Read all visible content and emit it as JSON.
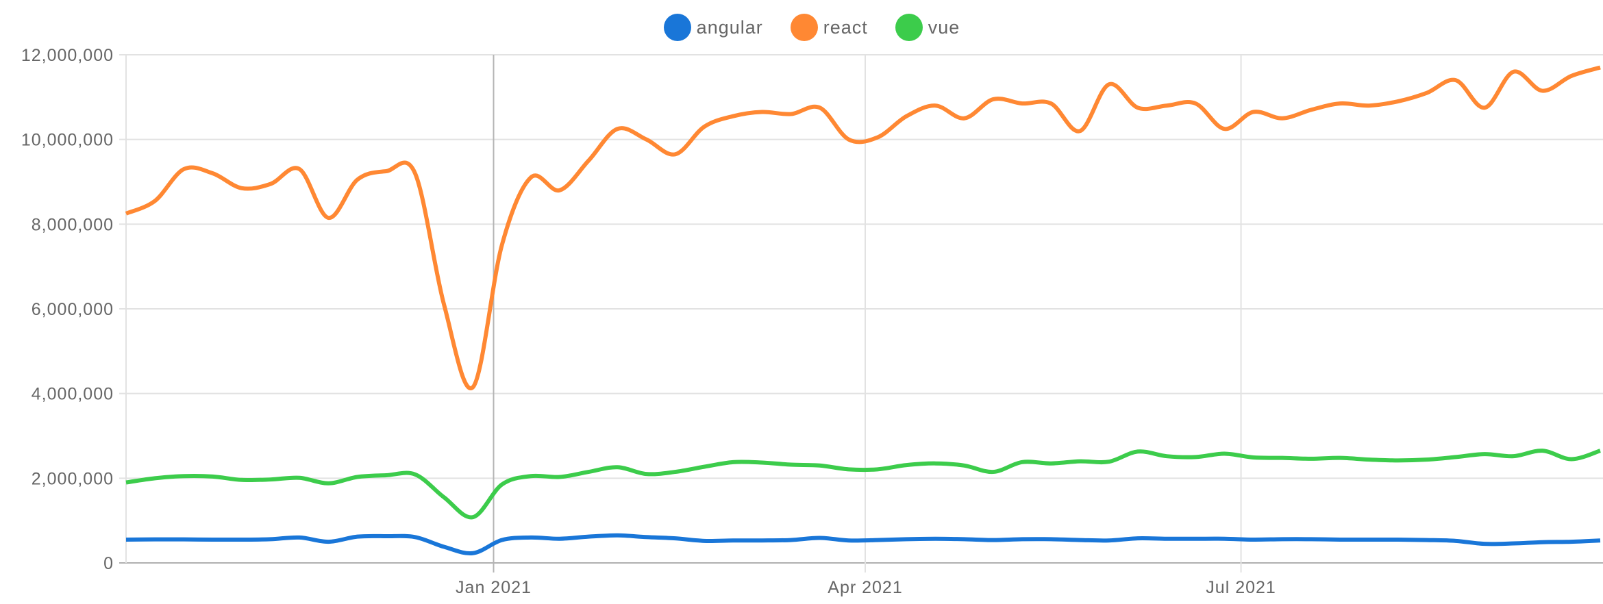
{
  "legend": {
    "items": [
      {
        "label": "angular",
        "color": "#1976d8"
      },
      {
        "label": "react",
        "color": "#ff8833"
      },
      {
        "label": "vue",
        "color": "#3ccc4b"
      }
    ]
  },
  "axes": {
    "y_ticks": [
      "12,000,000",
      "10,000,000",
      "8,000,000",
      "6,000,000",
      "4,000,000",
      "2,000,000",
      "0"
    ],
    "x_ticks": [
      "Jan 2021",
      "Apr 2021",
      "Jul 2021"
    ]
  },
  "colors": {
    "grid": "#e2e2e2",
    "axis": "#b0b0b0",
    "hover_line": "#b5b5b5",
    "tick_text": "#666666"
  },
  "chart_data": {
    "type": "line",
    "title": "",
    "xlabel": "",
    "ylabel": "",
    "ylim": [
      0,
      12000000
    ],
    "grid": true,
    "legend_position": "top",
    "x_tick_labels": [
      "Jan 2021",
      "Apr 2021",
      "Jul 2021"
    ],
    "x": [
      "2020-10-04",
      "2020-10-11",
      "2020-10-18",
      "2020-10-25",
      "2020-11-01",
      "2020-11-08",
      "2020-11-15",
      "2020-11-22",
      "2020-11-29",
      "2020-12-06",
      "2020-12-13",
      "2020-12-20",
      "2020-12-27",
      "2021-01-03",
      "2021-01-10",
      "2021-01-17",
      "2021-01-24",
      "2021-01-31",
      "2021-02-07",
      "2021-02-14",
      "2021-02-21",
      "2021-02-28",
      "2021-03-07",
      "2021-03-14",
      "2021-03-21",
      "2021-03-28",
      "2021-04-04",
      "2021-04-11",
      "2021-04-18",
      "2021-04-25",
      "2021-05-02",
      "2021-05-09",
      "2021-05-16",
      "2021-05-23",
      "2021-05-30",
      "2021-06-06",
      "2021-06-13",
      "2021-06-20",
      "2021-06-27",
      "2021-07-04",
      "2021-07-11",
      "2021-07-18",
      "2021-07-25",
      "2021-08-01",
      "2021-08-08",
      "2021-08-15",
      "2021-08-22",
      "2021-08-29",
      "2021-09-05",
      "2021-09-12",
      "2021-09-19",
      "2021-09-26"
    ],
    "series": [
      {
        "name": "react",
        "color": "#ff8833",
        "values": [
          8250000,
          8550000,
          9300000,
          9200000,
          8850000,
          8950000,
          9300000,
          8150000,
          9050000,
          9250000,
          9200000,
          6100000,
          4150000,
          7500000,
          9100000,
          8800000,
          9500000,
          10250000,
          10000000,
          9650000,
          10300000,
          10550000,
          10650000,
          10600000,
          10750000,
          10000000,
          10050000,
          10550000,
          10800000,
          10500000,
          10950000,
          10850000,
          10850000,
          10200000,
          11300000,
          10750000,
          10800000,
          10850000,
          10250000,
          10650000,
          10500000,
          10700000,
          10850000,
          10800000,
          10900000,
          11100000,
          11400000,
          10750000,
          11600000,
          11150000,
          11500000,
          11700000
        ]
      },
      {
        "name": "vue",
        "color": "#3ccc4b",
        "values": [
          1900000,
          2000000,
          2050000,
          2040000,
          1960000,
          1970000,
          2010000,
          1880000,
          2030000,
          2070000,
          2090000,
          1550000,
          1080000,
          1850000,
          2050000,
          2030000,
          2150000,
          2260000,
          2100000,
          2150000,
          2270000,
          2380000,
          2370000,
          2320000,
          2300000,
          2210000,
          2210000,
          2310000,
          2350000,
          2300000,
          2150000,
          2380000,
          2350000,
          2400000,
          2390000,
          2630000,
          2520000,
          2500000,
          2580000,
          2490000,
          2480000,
          2460000,
          2480000,
          2440000,
          2420000,
          2440000,
          2500000,
          2570000,
          2520000,
          2650000,
          2450000,
          2650000
        ]
      },
      {
        "name": "angular",
        "color": "#1976d8",
        "values": [
          550000,
          555000,
          555000,
          550000,
          550000,
          560000,
          600000,
          500000,
          620000,
          630000,
          610000,
          380000,
          230000,
          540000,
          600000,
          570000,
          620000,
          650000,
          610000,
          580000,
          520000,
          530000,
          530000,
          540000,
          590000,
          530000,
          540000,
          560000,
          570000,
          560000,
          540000,
          560000,
          560000,
          540000,
          530000,
          580000,
          570000,
          570000,
          570000,
          550000,
          560000,
          560000,
          550000,
          550000,
          550000,
          540000,
          520000,
          450000,
          460000,
          490000,
          500000,
          530000
        ]
      }
    ]
  }
}
